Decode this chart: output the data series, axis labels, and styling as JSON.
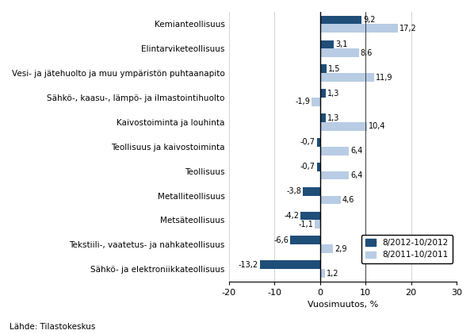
{
  "categories": [
    "Kemianteollisuus",
    "Elintarviketeollisuus",
    "Vesi- ja jätehuolto ja muu ympäristön puhtaanapito",
    "Sähkö-, kaasu-, lämpö- ja ilmastointihuolto",
    "Kaivostoiminta ja louhinta",
    "Teollisuus ja kaivostoiminta",
    "Teollisuus",
    "Metalliteollisuus",
    "Metsäteollisuus",
    "Tekstiili-, vaatetus- ja nahkateollisuus",
    "Sähkö- ja elektroniikkateollisuus"
  ],
  "values_2012": [
    9.2,
    3.1,
    1.5,
    1.3,
    1.3,
    -0.7,
    -0.7,
    -3.8,
    -4.2,
    -6.6,
    -13.2
  ],
  "values_2011": [
    17.2,
    8.6,
    11.9,
    -1.9,
    10.4,
    6.4,
    6.4,
    4.6,
    -1.1,
    2.9,
    1.2
  ],
  "color_2012": "#1F4E79",
  "color_2011": "#B8CCE4",
  "legend_2012": "8/2012-10/2012",
  "legend_2011": "8/2011-10/2011",
  "xlabel": "Vuosimuutos, %",
  "xlim": [
    -20,
    30
  ],
  "xticks": [
    -20,
    -10,
    0,
    10,
    20,
    30
  ],
  "source": "Lähde: Tilastokeskus",
  "bar_height": 0.35,
  "value_fontsize": 7.0
}
